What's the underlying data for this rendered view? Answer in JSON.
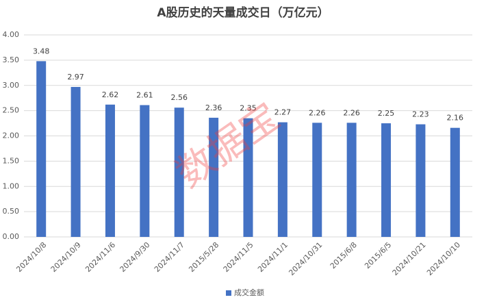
{
  "chart_data": {
    "type": "bar",
    "title": "A股历史的天量成交日（万亿元）",
    "categories": [
      "2024/10/8",
      "2024/10/9",
      "2024/11/6",
      "2024/9/30",
      "2024/11/7",
      "2015/5/28",
      "2024/11/5",
      "2024/11/1",
      "2024/10/31",
      "2015/6/8",
      "2015/6/5",
      "2024/10/21",
      "2024/10/10"
    ],
    "series": [
      {
        "name": "成交金额",
        "color": "#4472c4",
        "values": [
          3.48,
          2.97,
          2.62,
          2.61,
          2.56,
          2.36,
          2.35,
          2.27,
          2.26,
          2.26,
          2.25,
          2.23,
          2.16
        ]
      }
    ],
    "ylim": [
      0,
      4
    ],
    "yticks": [
      {
        "value": 0,
        "label": "0.00"
      },
      {
        "value": 0.5,
        "label": "0.50"
      },
      {
        "value": 1,
        "label": "1.00"
      },
      {
        "value": 1.5,
        "label": "1.50"
      },
      {
        "value": 2,
        "label": "2.00"
      },
      {
        "value": 2.5,
        "label": "2.50"
      },
      {
        "value": 3,
        "label": "3.00"
      },
      {
        "value": 3.5,
        "label": "3.50"
      },
      {
        "value": 4,
        "label": "4.00"
      }
    ],
    "grid": true,
    "legend": "bottom",
    "watermark": "数据宝"
  }
}
